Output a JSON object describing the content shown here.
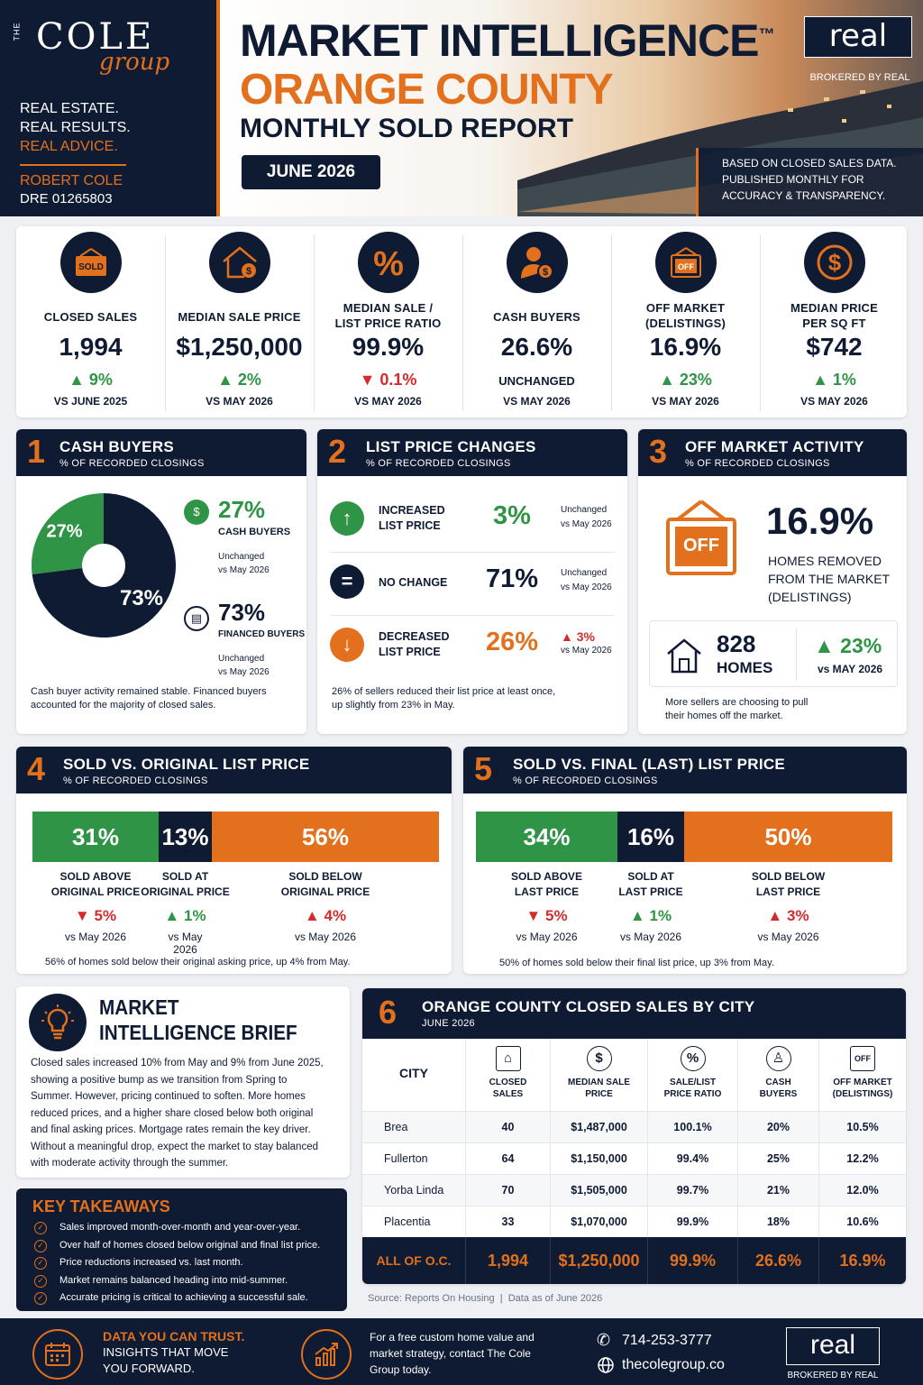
{
  "brand": {
    "the": "THE",
    "name": "COLE",
    "script": "group",
    "tag1": "REAL ESTATE.",
    "tag2": "REAL RESULTS.",
    "tag3": "REAL ADVICE.",
    "agent": "ROBERT COLE",
    "dre": "DRE 01265803"
  },
  "header": {
    "title1": "MARKET INTELLIGENCE",
    "tm": "™",
    "title2": "ORANGE COUNTY",
    "title3": "MONTHLY SOLD REPORT",
    "month": "JUNE 2026",
    "logo": "real",
    "brokered": "BROKERED BY REAL",
    "note1": "BASED ON CLOSED SALES DATA.",
    "note2": "PUBLISHED MONTHLY FOR",
    "note3": "ACCURACY & TRANSPARENCY."
  },
  "kpis": [
    {
      "icon": "sold-sign-icon",
      "label1": "CLOSED SALES",
      "label2": "",
      "value": "1,994",
      "change": "9%",
      "dir": "up",
      "vs": "VS JUNE 2025"
    },
    {
      "icon": "house-dollar-icon",
      "label1": "MEDIAN SALE PRICE",
      "label2": "",
      "value": "$1,250,000",
      "change": "2%",
      "dir": "up",
      "vs": "VS MAY 2026"
    },
    {
      "icon": "percent-icon",
      "label1": "MEDIAN SALE /",
      "label2": "LIST PRICE RATIO",
      "value": "99.9%",
      "change": "0.1%",
      "dir": "down",
      "vs": "VS MAY 2026"
    },
    {
      "icon": "cash-buyer-icon",
      "label1": "CASH BUYERS",
      "label2": "",
      "value": "26.6%",
      "change": "UNCHANGED",
      "dir": "none",
      "vs": "VS MAY 2026"
    },
    {
      "icon": "off-sign-icon",
      "label1": "OFF MARKET",
      "label2": "(DELISTINGS)",
      "value": "16.9%",
      "change": "23%",
      "dir": "up",
      "vs": "VS MAY 2026"
    },
    {
      "icon": "dollar-circle-icon",
      "label1": "MEDIAN PRICE",
      "label2": "PER SQ FT",
      "value": "$742",
      "change": "1%",
      "dir": "up",
      "vs": "VS MAY 2026"
    }
  ],
  "s1": {
    "num": "1",
    "title": "CASH BUYERS",
    "sub": "% OF RECORDED CLOSINGS",
    "cash_pct": "27%",
    "fin_pct": "73%",
    "cash_label": "CASH BUYERS",
    "fin_label": "FINANCED BUYERS",
    "unch": "Unchanged",
    "vs": "vs May 2026",
    "note1": "Cash buyer activity remained stable. Financed buyers",
    "note2": "accounted for the majority of closed sales."
  },
  "s2": {
    "num": "2",
    "title": "LIST PRICE CHANGES",
    "sub": "% OF RECORDED CLOSINGS",
    "rows": [
      {
        "l1": "INCREASED",
        "l2": "LIST PRICE",
        "val": "3%",
        "c1": "Unchanged",
        "c2": "vs May 2026"
      },
      {
        "l1": "NO CHANGE",
        "l2": "",
        "val": "71%",
        "c1": "Unchanged",
        "c2": "vs May 2026"
      },
      {
        "l1": "DECREASED",
        "l2": "LIST PRICE",
        "val": "26%",
        "c1": "3%",
        "c2": "vs May 2026"
      }
    ],
    "note1": "26% of sellers reduced their list price at least once,",
    "note2": "up slightly from 23% in May."
  },
  "s3": {
    "num": "3",
    "title": "OFF MARKET ACTIVITY",
    "sub": "% OF RECORDED CLOSINGS",
    "sign": "OFF",
    "big": "16.9%",
    "d1": "HOMES REMOVED",
    "d2": "FROM THE MARKET",
    "d3": "(DELISTINGS)",
    "homes": "828",
    "homes_lbl": "HOMES",
    "chg": "23%",
    "vs": "vs MAY 2026",
    "note1": "More sellers are choosing to pull",
    "note2": "their homes off the market."
  },
  "s4": {
    "num": "4",
    "title": "SOLD VS. ORIGINAL LIST PRICE",
    "sub": "% OF RECORDED CLOSINGS",
    "bars": [
      {
        "v": "31%",
        "l1": "SOLD ABOVE",
        "l2": "ORIGINAL PRICE",
        "c": "5%",
        "dir": "down",
        "vs": "vs May 2026"
      },
      {
        "v": "13%",
        "l1": "SOLD AT",
        "l2": "ORIGINAL PRICE",
        "c": "1%",
        "dir": "up",
        "vs": "vs May 2026"
      },
      {
        "v": "56%",
        "l1": "SOLD BELOW",
        "l2": "ORIGINAL PRICE",
        "c": "4%",
        "dir": "up-red",
        "vs": "vs May 2026"
      }
    ],
    "note": "56% of homes sold below their original asking price, up 4% from May."
  },
  "s5": {
    "num": "5",
    "title": "SOLD VS. FINAL (LAST) LIST PRICE",
    "sub": "% OF RECORDED CLOSINGS",
    "bars": [
      {
        "v": "34%",
        "l1": "SOLD ABOVE",
        "l2": "LAST PRICE",
        "c": "5%",
        "dir": "down",
        "vs": "vs May 2026"
      },
      {
        "v": "16%",
        "l1": "SOLD AT",
        "l2": "LAST PRICE",
        "c": "1%",
        "dir": "up",
        "vs": "vs May 2026"
      },
      {
        "v": "50%",
        "l1": "SOLD BELOW",
        "l2": "LAST PRICE",
        "c": "3%",
        "dir": "up-red",
        "vs": "vs May 2026"
      }
    ],
    "note": "50% of homes sold below their final list price, up 3% from May."
  },
  "brief": {
    "t1": "MARKET",
    "t2": "INTELLIGENCE BRIEF",
    "lines": [
      "Closed sales increased 10% from May and 9% from June 2025,",
      "showing a positive bump as we transition from Spring to",
      "Summer. However, pricing continued to soften. More homes",
      "reduced prices, and a higher share closed below both original",
      "and final asking prices. Mortgage rates remain the key driver.",
      "Without a meaningful drop, expect the market to stay balanced",
      "with moderate activity through the summer."
    ]
  },
  "takeaways": {
    "title": "KEY TAKEAWAYS",
    "items": [
      "Sales improved month-over-month and year-over-year.",
      "Over half of homes closed below original and final list price.",
      "Price reductions increased vs. last month.",
      "Market remains balanced heading into mid-summer.",
      "Accurate pricing is critical to achieving a successful sale."
    ]
  },
  "s6": {
    "num": "6",
    "title": "ORANGE COUNTY CLOSED SALES BY CITY",
    "sub": "JUNE 2026",
    "cols": [
      {
        "l1": "CITY",
        "l2": ""
      },
      {
        "l1": "CLOSED",
        "l2": "SALES"
      },
      {
        "l1": "MEDIAN SALE",
        "l2": "PRICE"
      },
      {
        "l1": "SALE/LIST",
        "l2": "PRICE RATIO"
      },
      {
        "l1": "CASH",
        "l2": "BUYERS"
      },
      {
        "l1": "OFF MARKET",
        "l2": "(DELISTINGS)"
      }
    ],
    "rows": [
      [
        "Brea",
        "40",
        "$1,487,000",
        "100.1%",
        "20%",
        "10.5%"
      ],
      [
        "Fullerton",
        "64",
        "$1,150,000",
        "99.4%",
        "25%",
        "12.2%"
      ],
      [
        "Yorba Linda",
        "70",
        "$1,505,000",
        "99.7%",
        "21%",
        "12.0%"
      ],
      [
        "Placentia",
        "33",
        "$1,070,000",
        "99.9%",
        "18%",
        "10.6%"
      ]
    ],
    "total": [
      "ALL OF O.C.",
      "1,994",
      "$1,250,000",
      "99.9%",
      "26.6%",
      "16.9%"
    ],
    "source": "Source: Reports On Housing  |  Data as of June 2026"
  },
  "footer": {
    "h1": "DATA YOU CAN TRUST.",
    "h2": "INSIGHTS THAT MOVE",
    "h3": "YOU FORWARD.",
    "c1": "For a free custom home value and",
    "c2": "market strategy, contact The Cole",
    "c3": "Group today.",
    "phone": "714-253-3777",
    "web": "thecolegroup.co",
    "logo": "real",
    "brokered": "BROKERED BY REAL"
  },
  "chart_data": [
    {
      "type": "pie",
      "title": "CASH BUYERS",
      "categories": [
        "CASH BUYERS",
        "FINANCED BUYERS"
      ],
      "values": [
        27,
        73
      ]
    },
    {
      "type": "bar",
      "title": "SOLD VS. ORIGINAL LIST PRICE",
      "categories": [
        "SOLD ABOVE ORIGINAL PRICE",
        "SOLD AT ORIGINAL PRICE",
        "SOLD BELOW ORIGINAL PRICE"
      ],
      "values": [
        31,
        13,
        56
      ]
    },
    {
      "type": "bar",
      "title": "SOLD VS. FINAL (LAST) LIST PRICE",
      "categories": [
        "SOLD ABOVE LAST PRICE",
        "SOLD AT LAST PRICE",
        "SOLD BELOW LAST PRICE"
      ],
      "values": [
        34,
        16,
        50
      ]
    }
  ],
  "colors": {
    "navy": "#0f1b33",
    "orange": "#e2701c",
    "green": "#2f9445",
    "red": "#d62b2b"
  }
}
